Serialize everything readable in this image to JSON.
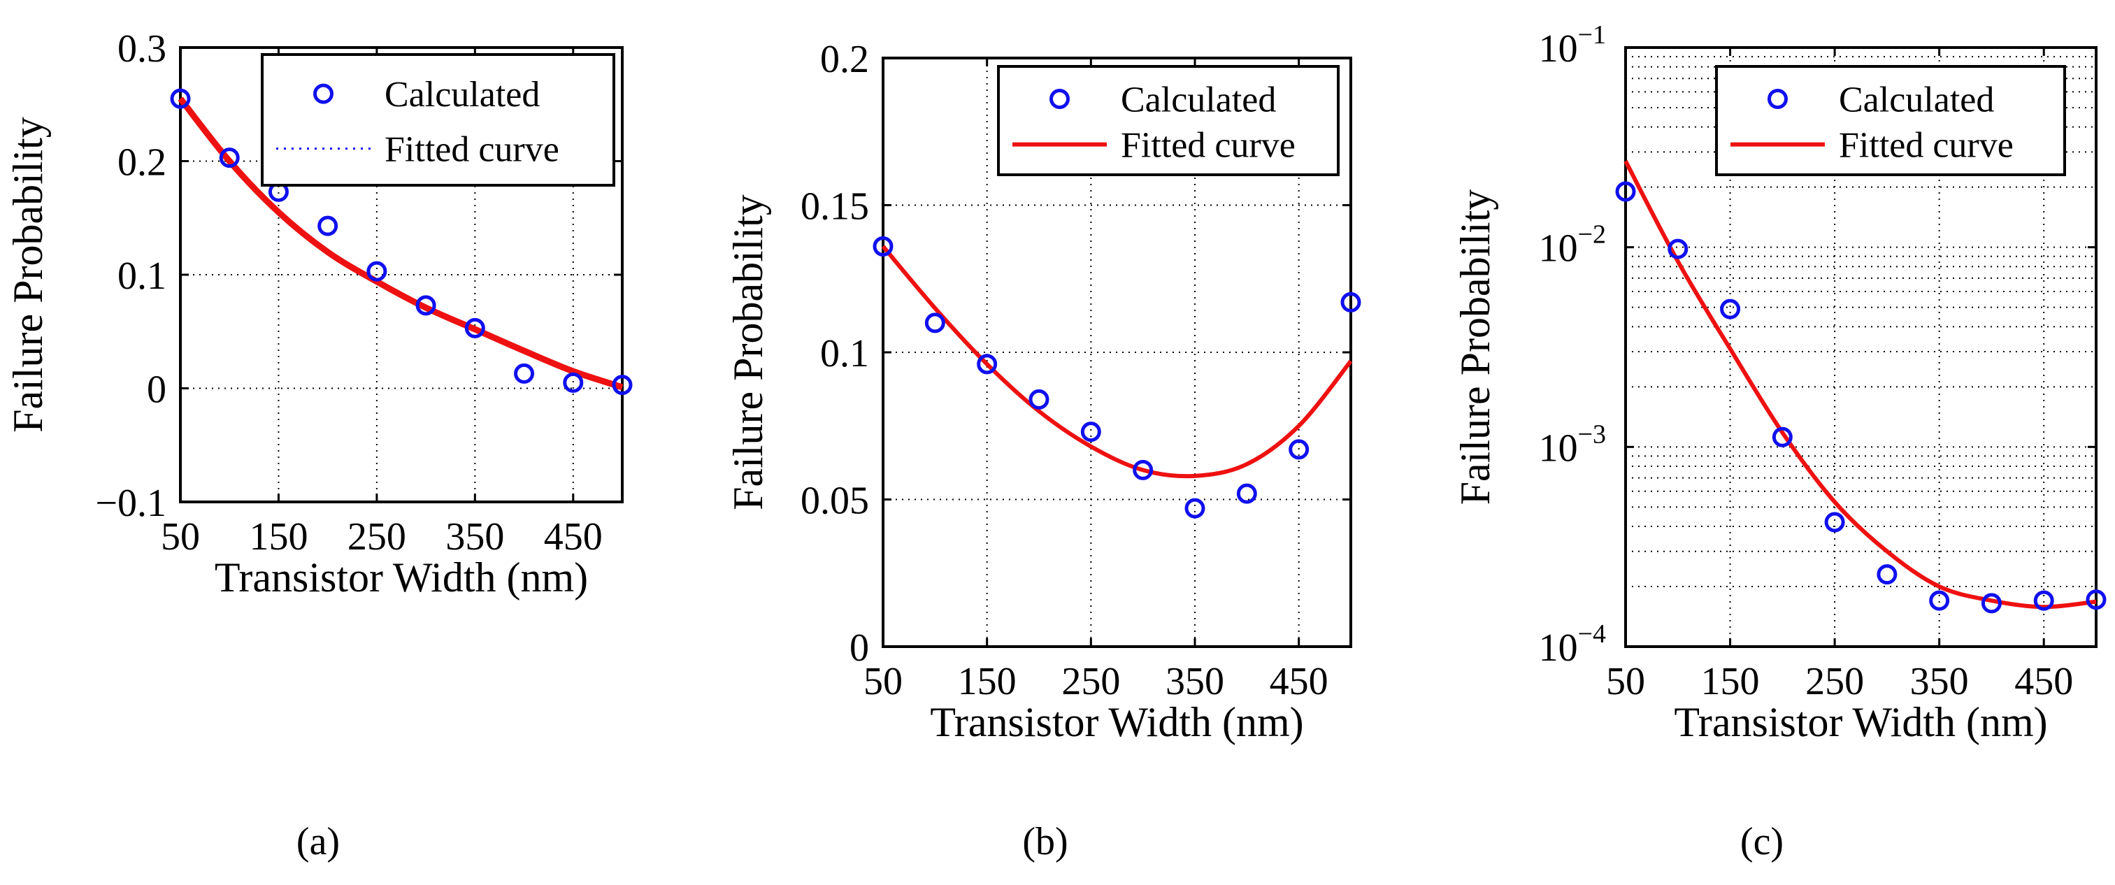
{
  "colors": {
    "marker": "#1010ee",
    "fit": "#ee1111",
    "axis": "#000000",
    "grid": "#000000"
  },
  "chart_data": [
    {
      "panel_label": "(a)",
      "type": "scatter",
      "xlabel": "Transistor Width (nm)",
      "ylabel": "Failure Probability",
      "xlim": [
        50,
        500
      ],
      "ylim": [
        -0.1,
        0.3
      ],
      "yscale": "linear",
      "xticks": [
        50,
        150,
        250,
        350,
        450
      ],
      "xtick_labels": [
        "50",
        "150",
        "250",
        "350",
        "450"
      ],
      "yticks": [
        -0.1,
        0,
        0.1,
        0.2,
        0.3
      ],
      "ytick_labels": [
        "−0.1",
        "0",
        "0.1",
        "0.2",
        "0.3"
      ],
      "xgrid": [
        150,
        250,
        350,
        450
      ],
      "ygrid": [
        0,
        0.1,
        0.2
      ],
      "grid": true,
      "legend_position": "top-right",
      "legend_fit_style": "dotted",
      "legend": [
        "Calculated",
        "Fitted curve"
      ],
      "series": [
        {
          "name": "Calculated",
          "x": [
            50,
            100,
            150,
            200,
            250,
            300,
            350,
            400,
            450,
            500
          ],
          "y": [
            0.255,
            0.203,
            0.173,
            0.143,
            0.103,
            0.073,
            0.053,
            0.013,
            0.005,
            0.003
          ]
        },
        {
          "name": "Fitted curve",
          "x": [
            50,
            100,
            150,
            200,
            250,
            300,
            350,
            400,
            450,
            500
          ],
          "y": [
            0.255,
            0.2,
            0.155,
            0.12,
            0.094,
            0.071,
            0.052,
            0.033,
            0.015,
            0.001
          ]
        }
      ]
    },
    {
      "panel_label": "(b)",
      "type": "scatter",
      "xlabel": "Transistor Width (nm)",
      "ylabel": "Failure Probability",
      "xlim": [
        50,
        500
      ],
      "ylim": [
        0,
        0.2
      ],
      "yscale": "linear",
      "xticks": [
        50,
        150,
        250,
        350,
        450
      ],
      "xtick_labels": [
        "50",
        "150",
        "250",
        "350",
        "450"
      ],
      "yticks": [
        0,
        0.05,
        0.1,
        0.15,
        0.2
      ],
      "ytick_labels": [
        "0",
        "0.05",
        "0.1",
        "0.15",
        "0.2"
      ],
      "xgrid": [
        150,
        250,
        350,
        450
      ],
      "ygrid": [
        0.05,
        0.1,
        0.15
      ],
      "grid": true,
      "legend_position": "top-right",
      "legend_fit_style": "solid",
      "legend": [
        "Calculated",
        "Fitted curve"
      ],
      "series": [
        {
          "name": "Calculated",
          "x": [
            50,
            100,
            150,
            200,
            250,
            300,
            350,
            400,
            450,
            500
          ],
          "y": [
            0.136,
            0.11,
            0.096,
            0.084,
            0.073,
            0.06,
            0.047,
            0.052,
            0.067,
            0.117
          ]
        },
        {
          "name": "Fitted curve",
          "x": [
            50,
            100,
            150,
            200,
            250,
            300,
            350,
            400,
            450,
            500
          ],
          "y": [
            0.136,
            0.115,
            0.096,
            0.08,
            0.068,
            0.06,
            0.058,
            0.062,
            0.075,
            0.097
          ]
        }
      ]
    },
    {
      "panel_label": "(c)",
      "type": "scatter",
      "xlabel": "Transistor Width (nm)",
      "ylabel": "Failure Probability",
      "xlim": [
        50,
        500
      ],
      "ylim": [
        0.0001,
        0.1
      ],
      "yscale": "log",
      "xticks": [
        50,
        150,
        250,
        350,
        450
      ],
      "xtick_labels": [
        "50",
        "150",
        "250",
        "350",
        "450"
      ],
      "yticks": [
        0.0001,
        0.001,
        0.01,
        0.1
      ],
      "ytick_base": [
        "10",
        "10",
        "10",
        "10"
      ],
      "ytick_exp": [
        "−4",
        "−3",
        "−2",
        "−1"
      ],
      "xgrid": [
        150,
        250,
        350,
        450
      ],
      "grid": true,
      "legend_position": "top-right",
      "legend_fit_style": "solid",
      "legend": [
        "Calculated",
        "Fitted curve"
      ],
      "series": [
        {
          "name": "Calculated",
          "x": [
            50,
            100,
            150,
            200,
            250,
            300,
            350,
            400,
            450,
            500
          ],
          "y": [
            0.019,
            0.0098,
            0.0049,
            0.00112,
            0.00042,
            0.00023,
            0.00017,
            0.000165,
            0.00017,
            0.000172
          ]
        },
        {
          "name": "Fitted curve",
          "x": [
            50,
            100,
            150,
            200,
            250,
            300,
            350,
            400,
            450,
            500
          ],
          "y": [
            0.027,
            0.0085,
            0.0031,
            0.00118,
            0.00053,
            0.0003,
            0.0002,
            0.00017,
            0.000158,
            0.000168
          ]
        }
      ]
    }
  ]
}
